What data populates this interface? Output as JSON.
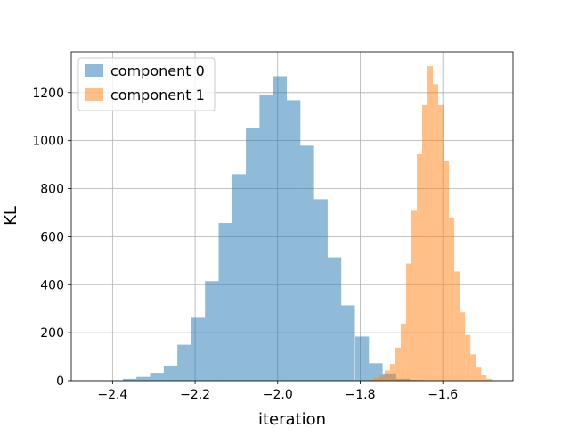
{
  "chart_data": {
    "type": "bar",
    "subtype": "histogram",
    "title": "",
    "xlabel": "iteration",
    "ylabel": "KL",
    "xlim": [
      -2.5,
      -1.43
    ],
    "ylim": [
      0,
      1370
    ],
    "grid": true,
    "legend_position": "top-left",
    "x_ticks": [
      -2.4,
      -2.2,
      -2.0,
      -1.8,
      -1.6
    ],
    "x_tick_labels": [
      "−2.4",
      "−2.2",
      "−2.0",
      "−1.8",
      "−1.6"
    ],
    "y_ticks": [
      0,
      200,
      400,
      600,
      800,
      1000,
      1200
    ],
    "y_tick_labels": [
      "0",
      "200",
      "400",
      "600",
      "800",
      "1000",
      "1200"
    ],
    "series": [
      {
        "name": "component 0",
        "color": "#1f77b4",
        "alpha": 0.5,
        "bin_width": 0.0331,
        "bins": [
          [
            -2.408,
            2
          ],
          [
            -2.375,
            8
          ],
          [
            -2.342,
            16
          ],
          [
            -2.309,
            33
          ],
          [
            -2.276,
            63
          ],
          [
            -2.243,
            150
          ],
          [
            -2.209,
            262
          ],
          [
            -2.176,
            415
          ],
          [
            -2.143,
            657
          ],
          [
            -2.11,
            860
          ],
          [
            -2.077,
            1051
          ],
          [
            -2.044,
            1192
          ],
          [
            -2.011,
            1268
          ],
          [
            -1.978,
            1168
          ],
          [
            -1.945,
            979
          ],
          [
            -1.912,
            756
          ],
          [
            -1.879,
            514
          ],
          [
            -1.846,
            314
          ],
          [
            -1.812,
            184
          ],
          [
            -1.779,
            73
          ],
          [
            -1.746,
            30
          ],
          [
            -1.713,
            8
          ],
          [
            -1.68,
            3
          ]
        ]
      },
      {
        "name": "component 1",
        "color": "#ff7f0e",
        "alpha": 0.5,
        "bin_width": 0.01294,
        "bins": [
          [
            -1.793,
            2
          ],
          [
            -1.78,
            4
          ],
          [
            -1.767,
            11
          ],
          [
            -1.754,
            21
          ],
          [
            -1.741,
            43
          ],
          [
            -1.728,
            70
          ],
          [
            -1.715,
            138
          ],
          [
            -1.702,
            238
          ],
          [
            -1.689,
            488
          ],
          [
            -1.676,
            708
          ],
          [
            -1.663,
            943
          ],
          [
            -1.65,
            1148
          ],
          [
            -1.637,
            1310
          ],
          [
            -1.624,
            1235
          ],
          [
            -1.611,
            1148
          ],
          [
            -1.598,
            915
          ],
          [
            -1.585,
            680
          ],
          [
            -1.572,
            455
          ],
          [
            -1.559,
            285
          ],
          [
            -1.546,
            190
          ],
          [
            -1.533,
            110
          ],
          [
            -1.52,
            55
          ],
          [
            -1.507,
            22
          ],
          [
            -1.494,
            8
          ],
          [
            -1.481,
            2
          ]
        ]
      }
    ]
  }
}
